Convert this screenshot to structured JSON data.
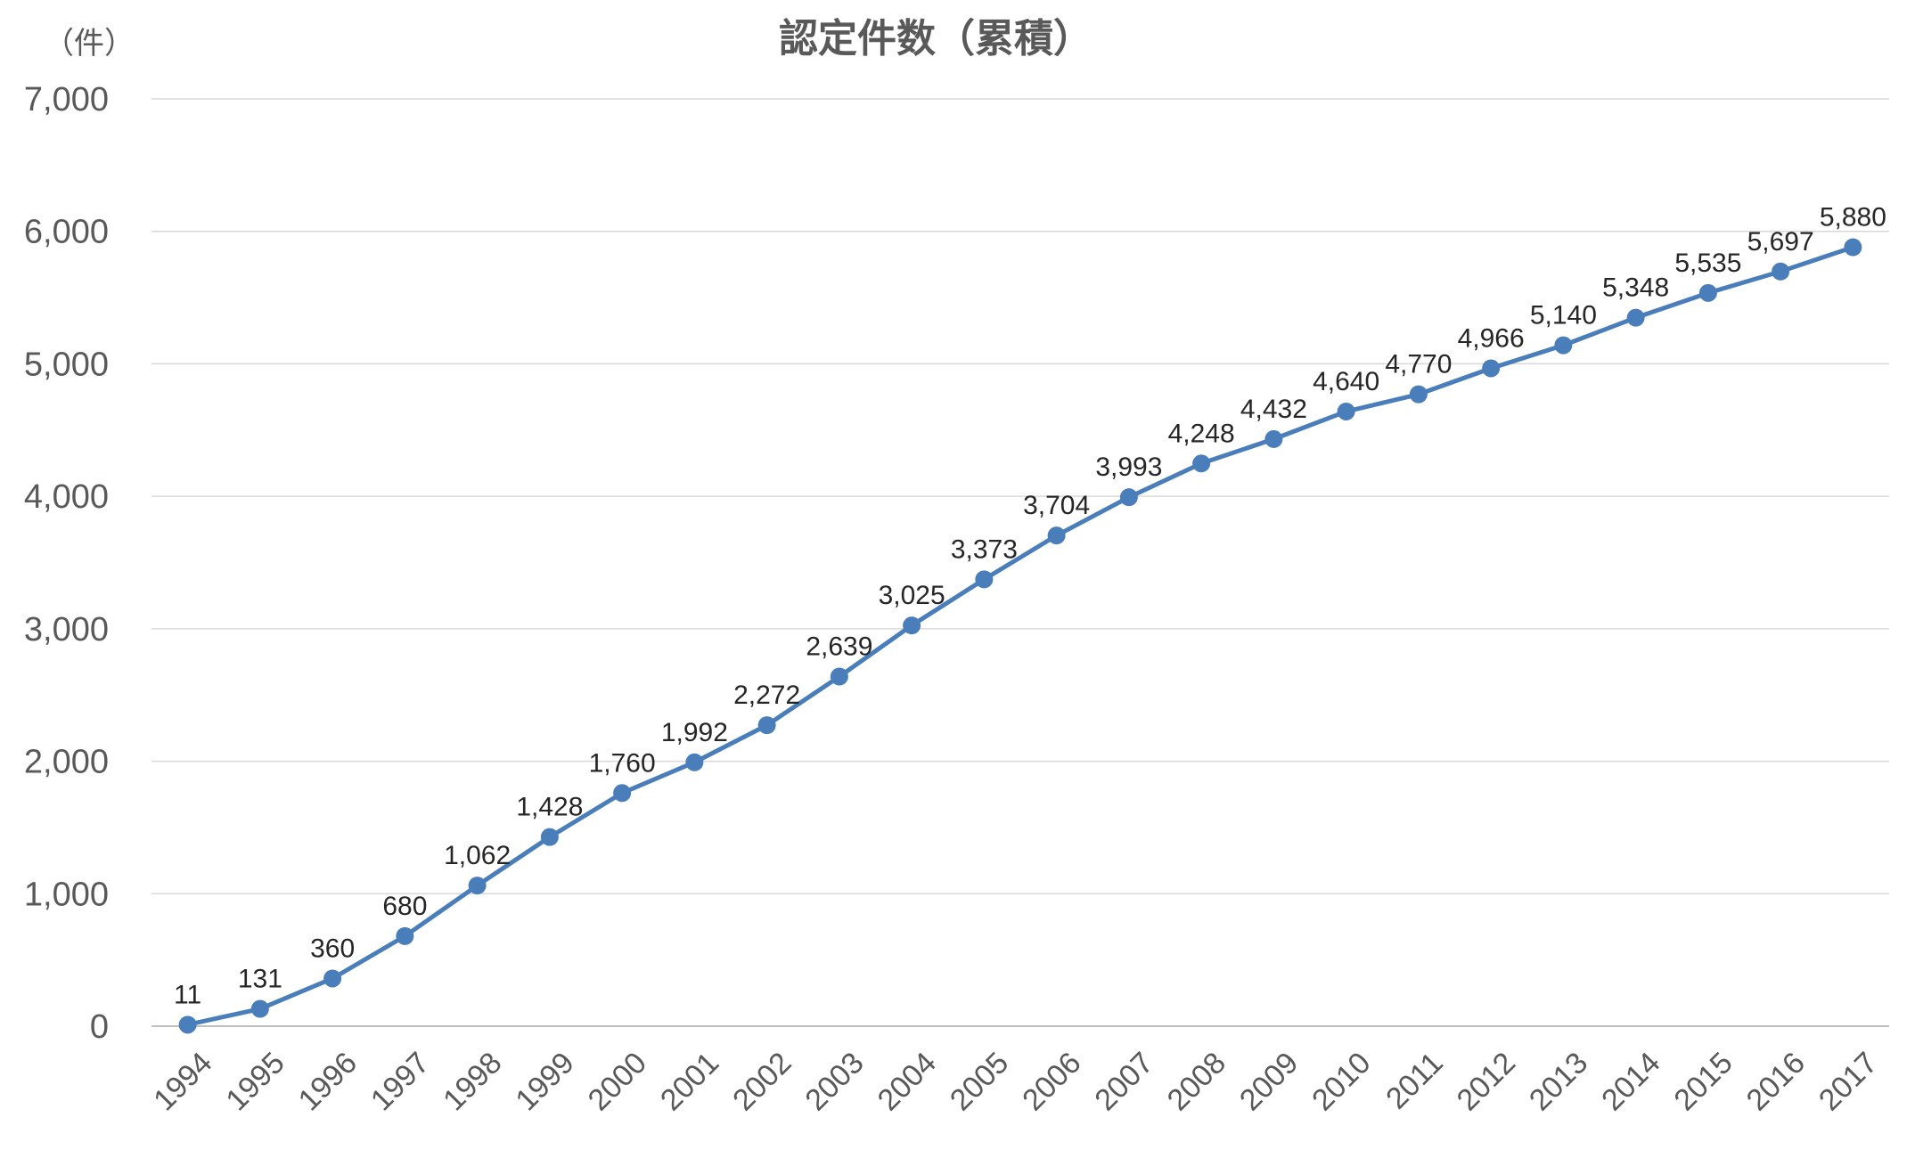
{
  "chart_data": {
    "type": "line",
    "title": "認定件数（累積）",
    "unit_label": "（件）",
    "xlabel": "",
    "ylabel": "",
    "ylim": [
      0,
      7000
    ],
    "yticks": [
      "0",
      "1,000",
      "2,000",
      "3,000",
      "4,000",
      "5,000",
      "6,000",
      "7,000"
    ],
    "grid": true,
    "legend": "none",
    "categories": [
      "1994",
      "1995",
      "1996",
      "1997",
      "1998",
      "1999",
      "2000",
      "2001",
      "2002",
      "2003",
      "2004",
      "2005",
      "2006",
      "2007",
      "2008",
      "2009",
      "2010",
      "2011",
      "2012",
      "2013",
      "2014",
      "2015",
      "2016",
      "2017"
    ],
    "series": [
      {
        "values": [
          11,
          131,
          360,
          680,
          1062,
          1428,
          1760,
          1992,
          2272,
          2639,
          3025,
          3373,
          3704,
          3993,
          4248,
          4432,
          4640,
          4770,
          4966,
          5140,
          5348,
          5535,
          5697,
          5880
        ],
        "labels": [
          "11",
          "131",
          "360",
          "680",
          "1,062",
          "1,428",
          "1,760",
          "1,992",
          "2,272",
          "2,639",
          "3,025",
          "3,373",
          "3,704",
          "3,993",
          "4,248",
          "4,432",
          "4,640",
          "4,770",
          "4,966",
          "5,140",
          "5,348",
          "5,535",
          "5,697",
          "5,880"
        ],
        "color": "#4a7ebb"
      }
    ]
  }
}
